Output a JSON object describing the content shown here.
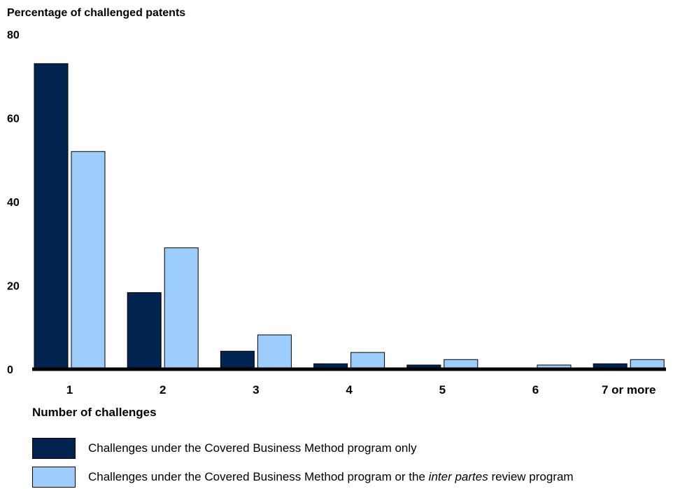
{
  "chart_data": {
    "type": "bar",
    "ylabel": "Percentage of challenged patents",
    "xlabel": "Number of challenges",
    "ylim": [
      0,
      80
    ],
    "yticks": [
      "0",
      "20",
      "40",
      "60",
      "80"
    ],
    "categories": [
      "1",
      "2",
      "3",
      "4",
      "5",
      "6",
      "7 or more"
    ],
    "series": [
      {
        "name": "Challenges under the Covered Business Method program only",
        "color": "#00234f",
        "values": [
          73,
          18.3,
          4.3,
          1.3,
          1.0,
          0.0,
          1.3
        ]
      },
      {
        "name_parts": [
          "Challenges under the Covered Business Method program or the ",
          "inter partes",
          " review program"
        ],
        "color": "#9dcdfb",
        "values": [
          52,
          29,
          8.2,
          4.0,
          2.3,
          1.0,
          2.3
        ]
      }
    ],
    "grid": false,
    "legend_position": "bottom"
  }
}
